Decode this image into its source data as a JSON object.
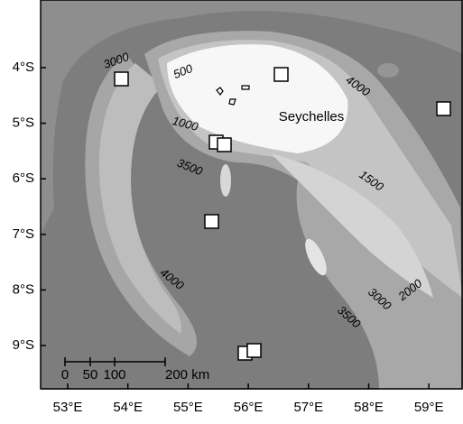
{
  "map": {
    "lon_labels": [
      "53°E",
      "54°E",
      "55°E",
      "56°E",
      "57°E",
      "58°E",
      "59°E"
    ],
    "lat_labels": [
      "4°S",
      "5°S",
      "6°S",
      "7°S",
      "8°S",
      "9°S"
    ],
    "place_label": "Seychelles",
    "contour_labels": [
      "3000",
      "500",
      "4000",
      "1000",
      "3500",
      "1500",
      "4000",
      "2000",
      "3000",
      "3500"
    ],
    "scale_bar_labels": [
      "0",
      "50",
      "100",
      "200 km"
    ]
  }
}
